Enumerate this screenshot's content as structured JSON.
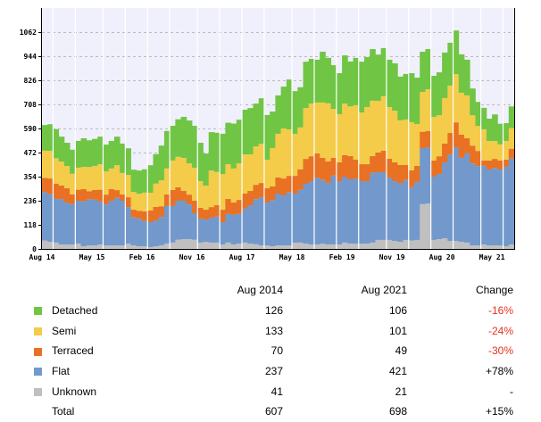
{
  "chart_data": {
    "type": "bar",
    "stacked": true,
    "x_interval": "month",
    "x_range": [
      "Aug 2014",
      "Aug 2021"
    ],
    "x_tick_labels": [
      "Aug 14",
      "May 15",
      "Feb 16",
      "Nov 16",
      "Aug 17",
      "May 18",
      "Feb 19",
      "Nov 19",
      "Aug 20",
      "May 21"
    ],
    "y_ticks": [
      0,
      118,
      236,
      354,
      472,
      590,
      708,
      826,
      944,
      1062
    ],
    "ylim": [
      0,
      1180
    ],
    "grid": "horizontal dashed",
    "background": "#f0f0fc",
    "series": [
      {
        "name": "Unknown",
        "color": "#c0c0c0",
        "values": [
          41,
          35,
          31,
          22,
          22,
          22,
          26,
          13,
          17,
          17,
          22,
          17,
          17,
          17,
          17,
          26,
          17,
          13,
          13,
          9,
          13,
          17,
          26,
          31,
          45,
          48,
          48,
          45,
          31,
          35,
          31,
          31,
          22,
          31,
          22,
          26,
          31,
          26,
          23,
          17,
          17,
          13,
          17,
          17,
          17,
          31,
          31,
          26,
          22,
          22,
          26,
          22,
          22,
          22,
          31,
          26,
          26,
          26,
          26,
          31,
          44,
          44,
          44,
          39,
          35,
          44,
          41,
          44,
          219,
          223,
          44,
          48,
          52,
          39,
          39,
          35,
          31,
          17,
          17,
          22,
          17,
          17,
          17,
          13,
          21
        ]
      },
      {
        "name": "Flat",
        "color": "#7399cc",
        "values": [
          237,
          233,
          216,
          221,
          205,
          197,
          210,
          220,
          227,
          224,
          210,
          201,
          219,
          233,
          219,
          179,
          137,
          135,
          124,
          122,
          127,
          140,
          184,
          179,
          191,
          188,
          170,
          130,
          118,
          109,
          122,
          127,
          109,
          140,
          146,
          146,
          166,
          188,
          221,
          236,
          210,
          227,
          254,
          245,
          262,
          240,
          258,
          293,
          310,
          328,
          312,
          302,
          337,
          310,
          323,
          315,
          319,
          306,
          306,
          342,
          332,
          332,
          306,
          293,
          286,
          294,
          261,
          284,
          275,
          275,
          310,
          319,
          372,
          424,
          459,
          411,
          437,
          402,
          389,
          385,
          372,
          380,
          372,
          389,
          421
        ]
      },
      {
        "name": "Terraced",
        "color": "#e87124",
        "values": [
          70,
          77,
          73,
          68,
          70,
          48,
          54,
          60,
          39,
          48,
          58,
          48,
          57,
          38,
          31,
          48,
          38,
          39,
          47,
          57,
          66,
          52,
          57,
          79,
          66,
          48,
          48,
          61,
          52,
          48,
          52,
          57,
          61,
          74,
          60,
          68,
          74,
          70,
          70,
          70,
          70,
          66,
          79,
          83,
          79,
          87,
          101,
          122,
          122,
          118,
          108,
          105,
          87,
          92,
          105,
          114,
          92,
          83,
          83,
          82,
          96,
          105,
          92,
          92,
          90,
          73,
          83,
          79,
          80,
          80,
          79,
          87,
          92,
          105,
          122,
          114,
          74,
          87,
          74,
          26,
          44,
          44,
          44,
          35,
          49
        ]
      },
      {
        "name": "Semi",
        "color": "#f4cc4a",
        "values": [
          133,
          135,
          124,
          117,
          109,
          101,
          108,
          109,
          118,
          117,
          125,
          114,
          101,
          122,
          105,
          109,
          87,
          83,
          92,
          87,
          114,
          127,
          127,
          144,
          149,
          162,
          153,
          162,
          131,
          118,
          179,
          162,
          175,
          170,
          166,
          179,
          192,
          179,
          188,
          192,
          140,
          188,
          214,
          245,
          227,
          205,
          205,
          249,
          258,
          249,
          271,
          284,
          240,
          236,
          253,
          243,
          267,
          253,
          280,
          271,
          253,
          267,
          253,
          253,
          219,
          223,
          236,
          205,
          195,
          204,
          214,
          201,
          223,
          232,
          236,
          205,
          210,
          149,
          122,
          153,
          96,
          87,
          79,
          92,
          101
        ]
      },
      {
        "name": "Detached",
        "color": "#70c545",
        "values": [
          126,
          131,
          143,
          122,
          114,
          118,
          131,
          140,
          131,
          133,
          135,
          131,
          135,
          140,
          144,
          131,
          109,
          114,
          114,
          135,
          144,
          170,
          184,
          170,
          184,
          201,
          210,
          205,
          188,
          157,
          188,
          192,
          197,
          203,
          220,
          214,
          219,
          227,
          210,
          223,
          219,
          179,
          188,
          205,
          245,
          210,
          197,
          227,
          219,
          210,
          249,
          223,
          214,
          201,
          236,
          220,
          232,
          249,
          245,
          253,
          227,
          236,
          232,
          232,
          214,
          223,
          240,
          227,
          197,
          197,
          201,
          210,
          223,
          210,
          214,
          188,
          175,
          131,
          118,
          105,
          109,
          131,
          101,
          87,
          106
        ]
      }
    ]
  },
  "table": {
    "headers": [
      "",
      "Aug 2014",
      "Aug 2021",
      "Change"
    ],
    "negative_color": "#e8311a",
    "rows": [
      {
        "label": "Detached",
        "color": "#70c545",
        "v2014": "126",
        "v2021": "106",
        "change": "-16%",
        "negative": true
      },
      {
        "label": "Semi",
        "color": "#f4cc4a",
        "v2014": "133",
        "v2021": "101",
        "change": "-24%",
        "negative": true
      },
      {
        "label": "Terraced",
        "color": "#e87124",
        "v2014": "70",
        "v2021": "49",
        "change": "-30%",
        "negative": true
      },
      {
        "label": "Flat",
        "color": "#7399cc",
        "v2014": "237",
        "v2021": "421",
        "change": "+78%",
        "negative": false
      },
      {
        "label": "Unknown",
        "color": "#c0c0c0",
        "v2014": "41",
        "v2021": "21",
        "change": "-",
        "negative": false
      },
      {
        "label": "Total",
        "color": "",
        "v2014": "607",
        "v2021": "698",
        "change": "+15%",
        "negative": false
      }
    ]
  }
}
